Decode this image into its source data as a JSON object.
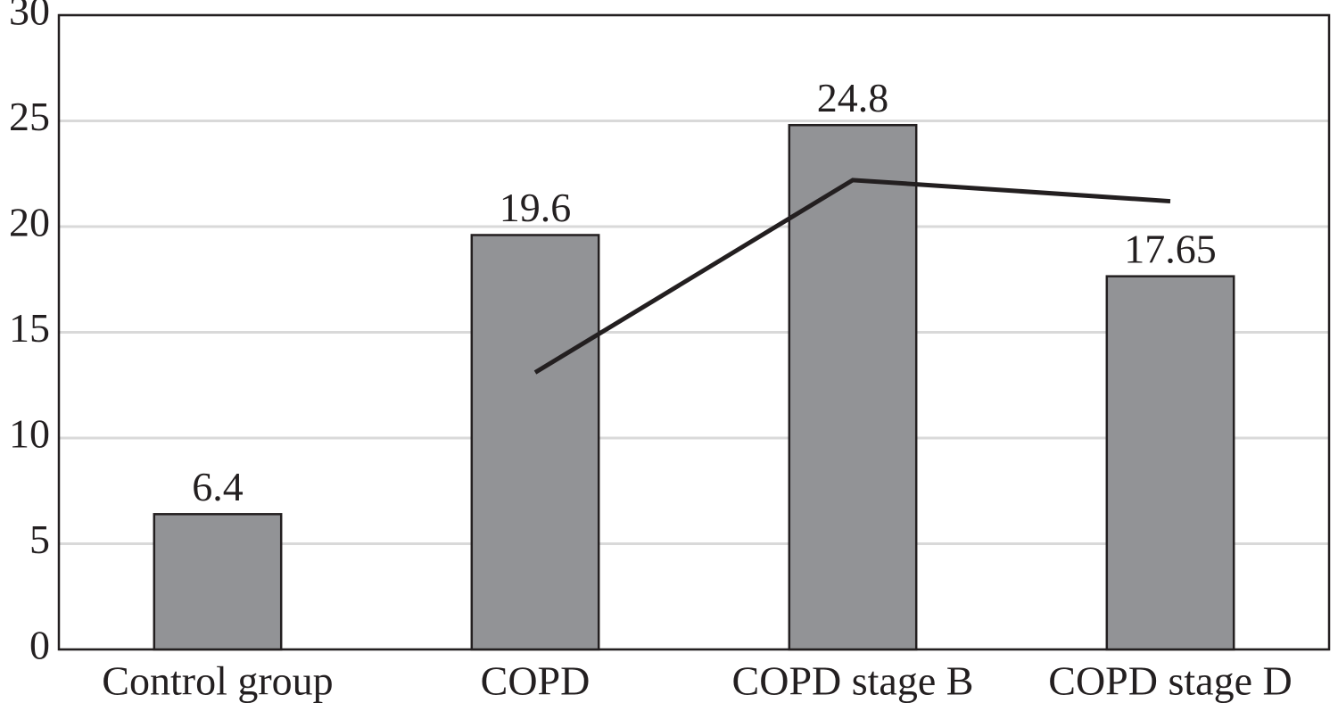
{
  "chart_data": {
    "type": "bar",
    "categories": [
      "Control group",
      "COPD",
      "COPD stage B",
      "COPD stage D"
    ],
    "series": [
      {
        "type": "bar",
        "color": "#929396",
        "values": [
          6.4,
          19.6,
          24.8,
          17.65
        ]
      },
      {
        "type": "line",
        "color": "#231f20",
        "values": [
          null,
          13.1,
          22.2,
          21.2
        ]
      }
    ],
    "ylim": [
      0,
      30
    ],
    "yticks": [
      0,
      5,
      10,
      15,
      20,
      25,
      30
    ],
    "grid": true
  }
}
